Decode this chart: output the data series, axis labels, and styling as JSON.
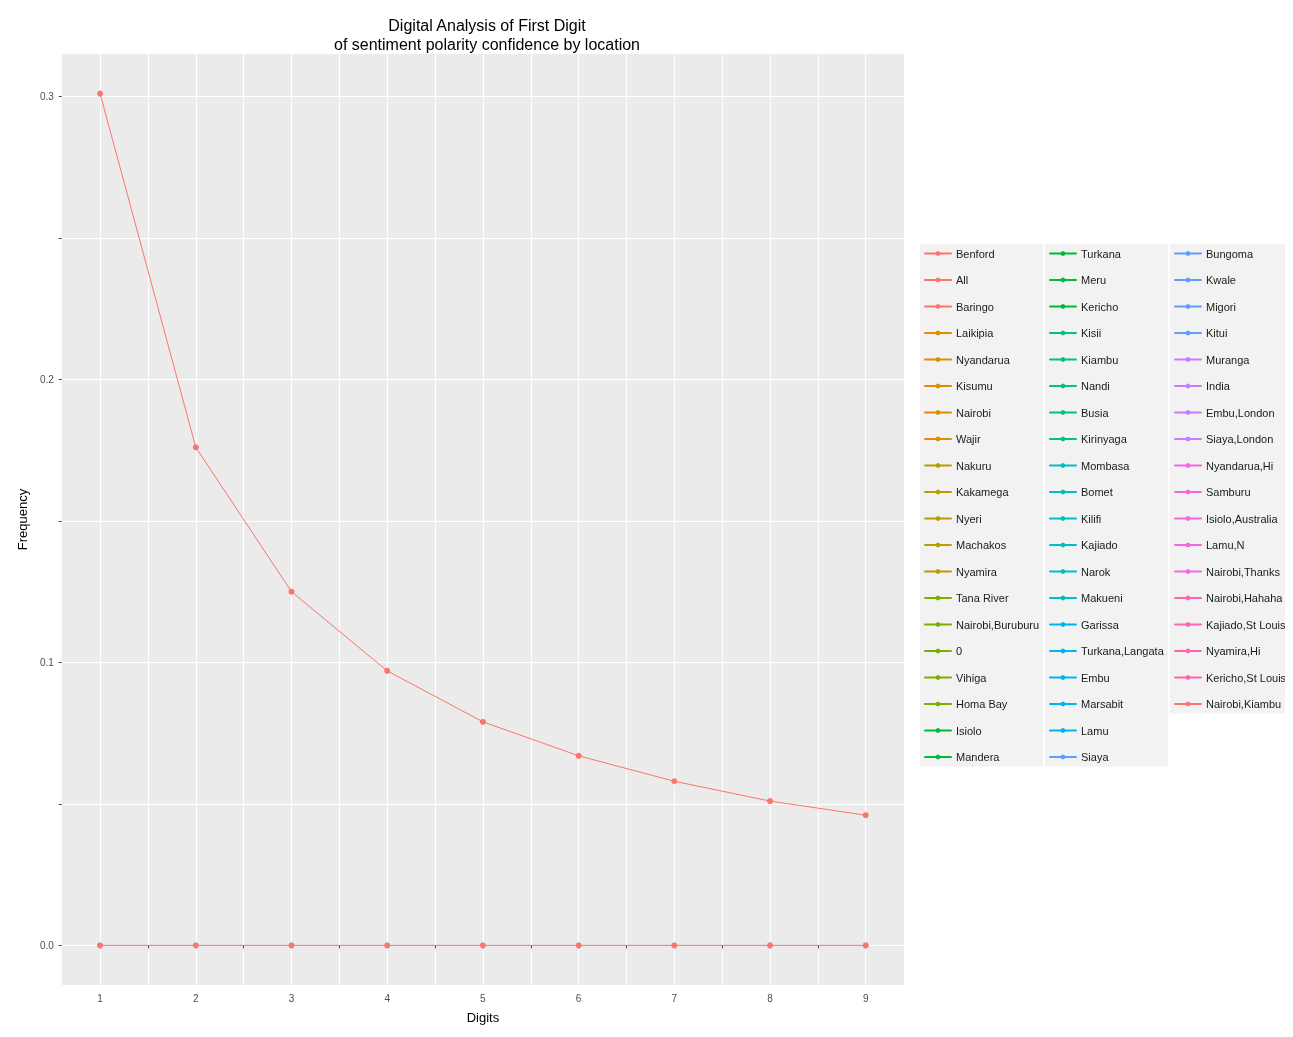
{
  "chart_data": {
    "type": "line",
    "title": "Digital Analysis of First Digit",
    "subtitle": "of sentiment polarity confidence by location",
    "xlabel": "Digits",
    "ylabel": "Frequency",
    "x": [
      1,
      2,
      3,
      4,
      5,
      6,
      7,
      8,
      9
    ],
    "xlim": [
      0.6,
      9.4
    ],
    "xticks": [
      1,
      {
        "value": 1.5,
        "label": null
      },
      2,
      {
        "value": 2.5,
        "label": null
      },
      3,
      {
        "value": 3.5,
        "label": null
      },
      4,
      {
        "value": 4.5,
        "label": null
      },
      5,
      {
        "value": 5.5,
        "label": null
      },
      6,
      {
        "value": 6.5,
        "label": null
      },
      7,
      {
        "value": 7.5,
        "label": null
      },
      8,
      {
        "value": 8.5,
        "label": null
      },
      9
    ],
    "ylim": [
      -0.014,
      0.315
    ],
    "yticks": [
      {
        "value": 0,
        "label": "0.0"
      },
      {
        "value": 0.05,
        "label": null
      },
      0.1,
      {
        "value": 0.15,
        "label": null
      },
      0.2,
      {
        "value": 0.25,
        "label": null
      },
      0.3
    ],
    "grid": true,
    "legend": "right",
    "marker": "circle",
    "line_style": "solid",
    "series": [
      {
        "name": "Benford",
        "color": "#f8766d",
        "values": [
          0.301,
          0.176,
          0.125,
          0.097,
          0.079,
          0.067,
          0.058,
          0.051,
          0.046
        ]
      },
      {
        "name": "All",
        "color": "#f8766d",
        "values": [
          null,
          null,
          null,
          null,
          null,
          null,
          null,
          null,
          null
        ]
      },
      {
        "name": "Baringo",
        "color": "#f8766d",
        "values": [
          null,
          null,
          null,
          null,
          null,
          null,
          null,
          null,
          null
        ]
      },
      {
        "name": "Laikipia",
        "color": "#de8c00",
        "values": [
          null,
          null,
          null,
          null,
          null,
          null,
          null,
          null,
          null
        ]
      },
      {
        "name": "Nyandarua",
        "color": "#de8c00",
        "values": [
          null,
          null,
          null,
          null,
          null,
          null,
          null,
          null,
          null
        ]
      },
      {
        "name": "Kisumu",
        "color": "#de8c00",
        "values": [
          null,
          null,
          null,
          null,
          null,
          null,
          null,
          null,
          null
        ]
      },
      {
        "name": "Nairobi",
        "color": "#de8c00",
        "values": [
          null,
          null,
          null,
          null,
          null,
          null,
          null,
          null,
          null
        ]
      },
      {
        "name": "Wajir",
        "color": "#de8c00",
        "values": [
          null,
          null,
          null,
          null,
          null,
          null,
          null,
          null,
          null
        ]
      },
      {
        "name": "Nakuru",
        "color": "#b79f00",
        "values": [
          null,
          null,
          null,
          null,
          null,
          null,
          null,
          null,
          null
        ]
      },
      {
        "name": "Kakamega",
        "color": "#b79f00",
        "values": [
          null,
          null,
          null,
          null,
          null,
          null,
          null,
          null,
          null
        ]
      },
      {
        "name": "Nyeri",
        "color": "#b79f00",
        "values": [
          null,
          null,
          null,
          null,
          null,
          null,
          null,
          null,
          null
        ]
      },
      {
        "name": "Machakos",
        "color": "#b79f00",
        "values": [
          null,
          null,
          null,
          null,
          null,
          null,
          null,
          null,
          null
        ]
      },
      {
        "name": "Nyamira",
        "color": "#b79f00",
        "values": [
          null,
          null,
          null,
          null,
          null,
          null,
          null,
          null,
          null
        ]
      },
      {
        "name": "Tana River",
        "color": "#7cae00",
        "values": [
          null,
          null,
          null,
          null,
          null,
          null,
          null,
          null,
          null
        ]
      },
      {
        "name": "Nairobi,Buruburu",
        "color": "#7cae00",
        "values": [
          null,
          null,
          null,
          null,
          null,
          null,
          null,
          null,
          null
        ]
      },
      {
        "name": "0",
        "color": "#7cae00",
        "values": [
          null,
          null,
          null,
          null,
          null,
          null,
          null,
          null,
          null
        ]
      },
      {
        "name": "Vihiga",
        "color": "#7cae00",
        "values": [
          null,
          null,
          null,
          null,
          null,
          null,
          null,
          null,
          null
        ]
      },
      {
        "name": "Homa Bay",
        "color": "#7cae00",
        "values": [
          null,
          null,
          null,
          null,
          null,
          null,
          null,
          null,
          null
        ]
      },
      {
        "name": "Isiolo",
        "color": "#00ba38",
        "values": [
          null,
          null,
          null,
          null,
          null,
          null,
          null,
          null,
          null
        ]
      },
      {
        "name": "Mandera",
        "color": "#00ba38",
        "values": [
          null,
          null,
          null,
          null,
          null,
          null,
          null,
          null,
          null
        ]
      },
      {
        "name": "Turkana",
        "color": "#00ba38",
        "values": [
          null,
          null,
          null,
          null,
          null,
          null,
          null,
          null,
          null
        ]
      },
      {
        "name": "Meru",
        "color": "#00ba38",
        "values": [
          null,
          null,
          null,
          null,
          null,
          null,
          null,
          null,
          null
        ]
      },
      {
        "name": "Kericho",
        "color": "#00ba38",
        "values": [
          null,
          null,
          null,
          null,
          null,
          null,
          null,
          null,
          null
        ]
      },
      {
        "name": "Kisii",
        "color": "#00c08b",
        "values": [
          null,
          null,
          null,
          null,
          null,
          null,
          null,
          null,
          null
        ]
      },
      {
        "name": "Kiambu",
        "color": "#00c08b",
        "values": [
          null,
          null,
          null,
          null,
          null,
          null,
          null,
          null,
          null
        ]
      },
      {
        "name": "Nandi",
        "color": "#00c08b",
        "values": [
          null,
          null,
          null,
          null,
          null,
          null,
          null,
          null,
          null
        ]
      },
      {
        "name": "Busia",
        "color": "#00c08b",
        "values": [
          null,
          null,
          null,
          null,
          null,
          null,
          null,
          null,
          null
        ]
      },
      {
        "name": "Kirinyaga",
        "color": "#00c08b",
        "values": [
          null,
          null,
          null,
          null,
          null,
          null,
          null,
          null,
          null
        ]
      },
      {
        "name": "Mombasa",
        "color": "#00bfc4",
        "values": [
          null,
          null,
          null,
          null,
          null,
          null,
          null,
          null,
          null
        ]
      },
      {
        "name": "Bomet",
        "color": "#00bfc4",
        "values": [
          null,
          null,
          null,
          null,
          null,
          null,
          null,
          null,
          null
        ]
      },
      {
        "name": "Kilifi",
        "color": "#00bfc4",
        "values": [
          null,
          null,
          null,
          null,
          null,
          null,
          null,
          null,
          null
        ]
      },
      {
        "name": "Kajiado",
        "color": "#00bfc4",
        "values": [
          null,
          null,
          null,
          null,
          null,
          null,
          null,
          null,
          null
        ]
      },
      {
        "name": "Narok",
        "color": "#00bfc4",
        "values": [
          null,
          null,
          null,
          null,
          null,
          null,
          null,
          null,
          null
        ]
      },
      {
        "name": "Makueni",
        "color": "#00bfc4",
        "values": [
          null,
          null,
          null,
          null,
          null,
          null,
          null,
          null,
          null
        ]
      },
      {
        "name": "Garissa",
        "color": "#00b4f0",
        "values": [
          null,
          null,
          null,
          null,
          null,
          null,
          null,
          null,
          null
        ]
      },
      {
        "name": "Turkana,Langata",
        "color": "#00b4f0",
        "values": [
          null,
          null,
          null,
          null,
          null,
          null,
          null,
          null,
          null
        ]
      },
      {
        "name": "Embu",
        "color": "#00b4f0",
        "values": [
          null,
          null,
          null,
          null,
          null,
          null,
          null,
          null,
          null
        ]
      },
      {
        "name": "Marsabit",
        "color": "#00b4f0",
        "values": [
          null,
          null,
          null,
          null,
          null,
          null,
          null,
          null,
          null
        ]
      },
      {
        "name": "Lamu",
        "color": "#00b4f0",
        "values": [
          null,
          null,
          null,
          null,
          null,
          null,
          null,
          null,
          null
        ]
      },
      {
        "name": "Siaya",
        "color": "#619cff",
        "values": [
          null,
          null,
          null,
          null,
          null,
          null,
          null,
          null,
          null
        ]
      },
      {
        "name": "Bungoma",
        "color": "#619cff",
        "values": [
          null,
          null,
          null,
          null,
          null,
          null,
          null,
          null,
          null
        ]
      },
      {
        "name": "Kwale",
        "color": "#619cff",
        "values": [
          null,
          null,
          null,
          null,
          null,
          null,
          null,
          null,
          null
        ]
      },
      {
        "name": "Migori",
        "color": "#619cff",
        "values": [
          null,
          null,
          null,
          null,
          null,
          null,
          null,
          null,
          null
        ]
      },
      {
        "name": "Kitui",
        "color": "#619cff",
        "values": [
          null,
          null,
          null,
          null,
          null,
          null,
          null,
          null,
          null
        ]
      },
      {
        "name": "Muranga",
        "color": "#c77cff",
        "values": [
          null,
          null,
          null,
          null,
          null,
          null,
          null,
          null,
          null
        ]
      },
      {
        "name": "India",
        "color": "#c77cff",
        "values": [
          null,
          null,
          null,
          null,
          null,
          null,
          null,
          null,
          null
        ]
      },
      {
        "name": "Embu,London",
        "color": "#c77cff",
        "values": [
          null,
          null,
          null,
          null,
          null,
          null,
          null,
          null,
          null
        ]
      },
      {
        "color": "#c77cff",
        "values": [
          null,
          null,
          null,
          null,
          null,
          null,
          null,
          null,
          null
        ]
      },
      {
        "name": "Siaya,London",
        "color": "#c77cff",
        "values": [
          null,
          null,
          null,
          null,
          null,
          null,
          null,
          null,
          null
        ]
      },
      {
        "name": "Nyandarua,Hi",
        "color": "#f564e3",
        "values": [
          null,
          null,
          null,
          null,
          null,
          null,
          null,
          null,
          null
        ]
      },
      {
        "name": "Samburu",
        "color": "#f564e3",
        "values": [
          null,
          null,
          null,
          null,
          null,
          null,
          null,
          null,
          null
        ]
      },
      {
        "name": "Isiolo,Australia",
        "color": "#f564e3",
        "values": [
          null,
          null,
          null,
          null,
          null,
          null,
          null,
          null,
          null
        ]
      },
      {
        "name": "Lamu,N",
        "color": "#f564e3",
        "values": [
          null,
          null,
          null,
          null,
          null,
          null,
          null,
          null,
          null
        ]
      },
      {
        "name": "Nairobi,Thanks",
        "color": "#f564e3",
        "values": [
          null,
          null,
          null,
          null,
          null,
          null,
          null,
          null,
          null
        ]
      },
      {
        "name": "Nairobi,Hahaha",
        "color": "#ff64b0",
        "values": [
          null,
          null,
          null,
          null,
          null,
          null,
          null,
          null,
          null
        ]
      },
      {
        "name": "Kajiado,St Louis",
        "color": "#ff64b0",
        "values": [
          null,
          null,
          null,
          null,
          null,
          null,
          null,
          null,
          null
        ]
      },
      {
        "name": "Nyamira,Hi",
        "color": "#ff64b0",
        "values": [
          null,
          null,
          null,
          null,
          null,
          null,
          null,
          null,
          null
        ]
      },
      {
        "name": "Kericho,St Louis",
        "color": "#ff64b0",
        "values": [
          null,
          null,
          null,
          null,
          null,
          null,
          null,
          null,
          null
        ]
      },
      {
        "name": "Nairobi,Kiambu",
        "color": "#f8766d",
        "values": [
          0,
          0,
          0,
          0,
          0,
          0,
          0,
          0,
          0
        ]
      }
    ]
  }
}
